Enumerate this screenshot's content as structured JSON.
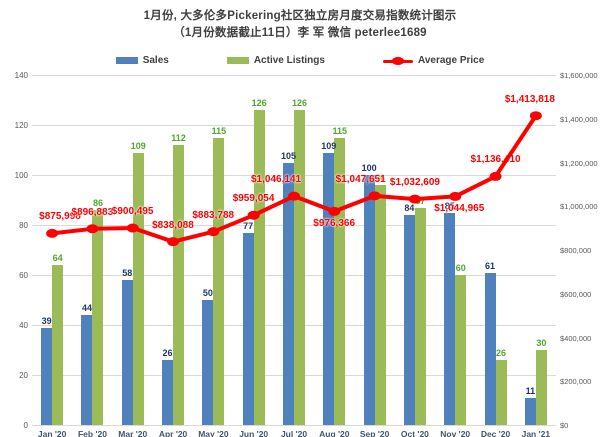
{
  "title": {
    "line1": "1月份, 大多伦多Pickering社区独立房月度交易指数统计图示",
    "line2": "（1月份数据截止11日）李 军  微信  peterlee1689"
  },
  "legend": {
    "sales_label": "Sales",
    "listings_label": "Active Listings",
    "price_label": "Average Price"
  },
  "colors": {
    "sales_bar": "#4f81bd",
    "listings_bar": "#9bbb59",
    "price_line": "#ff0000",
    "sales_value_label": "#1f3864",
    "listings_value_label": "#4ea72e",
    "axis_text": "#595959",
    "grid": "#d9d9d9"
  },
  "chart_data": {
    "type": "bar",
    "subtype": "combo-bar-line",
    "title": "1月份, 大多伦多Pickering社区独立房月度交易指数统计图示（1月份数据截止11日）李 军 微信 peterlee1689",
    "categories": [
      "Jan '20",
      "Feb '20",
      "Mar '20",
      "Apr '20",
      "May '20",
      "Jun '20",
      "Jul '20",
      "Aug '20",
      "Sep '20",
      "Oct '20",
      "Nov '20",
      "Dec '20",
      "Jan '21"
    ],
    "series": [
      {
        "name": "Sales",
        "type": "bar",
        "axis": "left",
        "values": [
          39,
          44,
          58,
          26,
          50,
          77,
          105,
          109,
          100,
          84,
          85,
          61,
          11
        ]
      },
      {
        "name": "Active Listings",
        "type": "bar",
        "axis": "left",
        "values": [
          64,
          86,
          109,
          112,
          115,
          126,
          126,
          115,
          96,
          87,
          60,
          26,
          30
        ]
      },
      {
        "name": "Average Price",
        "type": "line",
        "axis": "right",
        "values": [
          875998,
          896883,
          900495,
          838088,
          883788,
          959054,
          1046141,
          976366,
          1047651,
          1032609,
          1044965,
          1136410,
          1413818
        ],
        "labels": [
          "$875,998",
          "$896,883",
          "$900,495",
          "$838,088",
          "$883,788",
          "$959,054",
          "$1,046,141",
          "$976,366",
          "$1,047,651",
          "$1,032,609",
          "$1,044,965",
          "$1,136,410",
          "$1,413,818"
        ],
        "label_side": [
          "above",
          "above",
          "above",
          "above",
          "above",
          "above",
          "above",
          "below",
          "above",
          "above",
          "below",
          "above",
          "above"
        ]
      }
    ],
    "left_axis": {
      "min": 0,
      "max": 140,
      "step": 20,
      "ticks": [
        "0",
        "20",
        "40",
        "60",
        "80",
        "100",
        "120",
        "140"
      ]
    },
    "right_axis": {
      "min": 0,
      "max": 1600000,
      "step": 200000,
      "ticks": [
        "$0",
        "$200,000",
        "$400,000",
        "$600,000",
        "$800,000",
        "$1,000,000",
        "$1,200,000",
        "$1,400,000",
        "$1,600,000"
      ]
    },
    "grid": true,
    "legend_position": "top"
  }
}
